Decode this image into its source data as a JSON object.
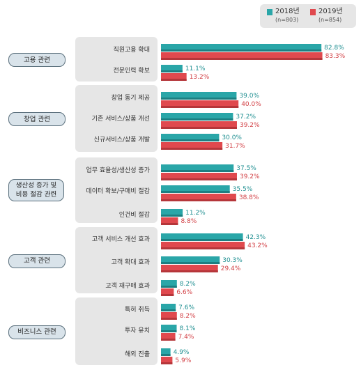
{
  "legend": {
    "items": [
      {
        "label": "2018년",
        "n": "(n=803)",
        "color": "#2aa6a8"
      },
      {
        "label": "2019년",
        "n": "(n=854)",
        "color": "#e0494e"
      }
    ]
  },
  "chart_data": {
    "type": "bar",
    "orientation": "horizontal",
    "xlim": [
      0,
      100
    ],
    "series": [
      {
        "name": "2018년",
        "color": "#2aa6a8"
      },
      {
        "name": "2019년",
        "color": "#e0494e"
      }
    ],
    "groups": [
      {
        "label": "고용 관련",
        "items": [
          {
            "label": "직원고용 확대",
            "values": [
              82.8,
              83.3
            ],
            "text": [
              "82.8%",
              "83.3%"
            ]
          },
          {
            "label": "전문인력 확보",
            "values": [
              11.1,
              13.2
            ],
            "text": [
              "11.1%",
              "13.2%"
            ]
          }
        ]
      },
      {
        "label": "창업 관련",
        "items": [
          {
            "label": "창업 동기 제공",
            "values": [
              39.0,
              40.0
            ],
            "text": [
              "39.0%",
              "40.0%"
            ]
          },
          {
            "label": "기존 서비스/상품 개선",
            "values": [
              37.2,
              39.2
            ],
            "text": [
              "37.2%",
              "39.2%"
            ]
          },
          {
            "label": "신규서비스/상품 개발",
            "values": [
              30.0,
              31.7
            ],
            "text": [
              "30.0%",
              "31.7%"
            ]
          }
        ]
      },
      {
        "label": "생산성 증가 및 비용 절감 관련",
        "items": [
          {
            "label": "업무 효율성/생산성 증가",
            "values": [
              37.5,
              39.2
            ],
            "text": [
              "37.5%",
              "39.2%"
            ]
          },
          {
            "label": "데이터 확보/구매비 절감",
            "values": [
              35.5,
              38.8
            ],
            "text": [
              "35.5%",
              "38.8%"
            ]
          },
          {
            "label": "인건비 절감",
            "values": [
              11.2,
              8.8
            ],
            "text": [
              "11.2%",
              "8.8%"
            ]
          }
        ]
      },
      {
        "label": "고객 관련",
        "items": [
          {
            "label": "고객 서비스 개선 효과",
            "values": [
              42.3,
              43.2
            ],
            "text": [
              "42.3%",
              "43.2%"
            ]
          },
          {
            "label": "고객 확대 효과",
            "values": [
              30.3,
              29.4
            ],
            "text": [
              "30.3%",
              "29.4%"
            ]
          },
          {
            "label": "고객 재구매 효과",
            "values": [
              8.2,
              6.6
            ],
            "text": [
              "8.2%",
              "6.6%"
            ]
          }
        ]
      },
      {
        "label": "비즈니스 관련",
        "items": [
          {
            "label": "특허 취득",
            "values": [
              7.6,
              8.2
            ],
            "text": [
              "7.6%",
              "8.2%"
            ]
          },
          {
            "label": "투자 유치",
            "values": [
              8.1,
              7.4
            ],
            "text": [
              "8.1%",
              "7.4%"
            ]
          },
          {
            "label": "해외 진출",
            "values": [
              4.9,
              5.9
            ],
            "text": [
              "4.9%",
              "5.9%"
            ]
          }
        ]
      }
    ]
  }
}
